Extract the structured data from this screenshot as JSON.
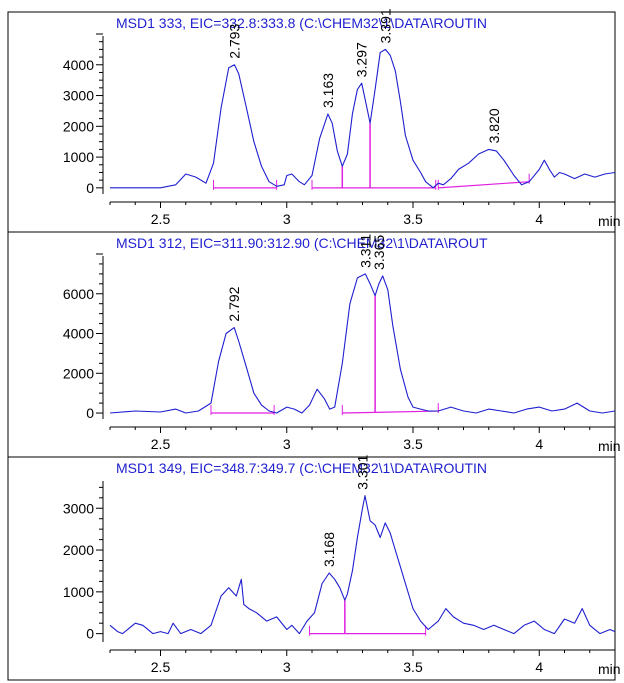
{
  "chart_data": [
    {
      "type": "line",
      "title": "MSD1 333, EIC=332.8:333.8 (C:\\CHEM32\\1\\DATA\\ROUTIN",
      "xlabel": "min",
      "ylabel": "",
      "xlim": [
        2.3,
        4.3
      ],
      "ylim": [
        -200,
        5000
      ],
      "x_ticks": [
        2.5,
        3,
        3.5,
        4
      ],
      "x_tick_labels": [
        "2.5",
        "3",
        "3.5",
        "4"
      ],
      "y_ticks": [
        0,
        1000,
        2000,
        3000,
        4000
      ],
      "y_tick_labels": [
        "0",
        "1000",
        "2000",
        "3000",
        "4000"
      ],
      "series": [
        {
          "x": [
            2.3,
            2.5,
            2.56,
            2.6,
            2.64,
            2.68,
            2.71,
            2.74,
            2.77,
            2.793,
            2.81,
            2.84,
            2.87,
            2.9,
            2.93,
            2.96,
            2.99,
            3.0,
            3.02,
            3.05,
            3.07,
            3.1,
            3.13,
            3.163,
            3.18,
            3.2,
            3.22,
            3.24,
            3.26,
            3.28,
            3.297,
            3.31,
            3.33,
            3.35,
            3.37,
            3.391,
            3.41,
            3.43,
            3.45,
            3.47,
            3.5,
            3.53,
            3.55,
            3.58,
            3.6,
            3.62,
            3.65,
            3.68,
            3.72,
            3.76,
            3.8,
            3.83,
            3.86,
            3.9,
            3.93,
            3.96,
            4.0,
            4.02,
            4.04,
            4.06,
            4.08,
            4.1,
            4.14,
            4.18,
            4.22,
            4.26,
            4.3
          ],
          "y": [
            0,
            0,
            100,
            450,
            350,
            150,
            800,
            2600,
            3900,
            4000,
            3700,
            2600,
            1500,
            700,
            200,
            50,
            100,
            400,
            450,
            200,
            100,
            400,
            1600,
            2400,
            2100,
            1200,
            700,
            1100,
            2400,
            3200,
            3400,
            2900,
            2100,
            3200,
            4400,
            4500,
            4300,
            3800,
            2800,
            1700,
            900,
            500,
            200,
            0,
            150,
            100,
            300,
            600,
            800,
            1100,
            1250,
            1200,
            900,
            400,
            100,
            200,
            600,
            900,
            600,
            350,
            500,
            450,
            300,
            450,
            350,
            450,
            500
          ]
        }
      ],
      "peak_labels": [
        {
          "x": 2.793,
          "y": 4000,
          "text": "2.793"
        },
        {
          "x": 3.163,
          "y": 2400,
          "text": "3.163"
        },
        {
          "x": 3.297,
          "y": 3400,
          "text": "3.297"
        },
        {
          "x": 3.391,
          "y": 4500,
          "text": "3.391"
        },
        {
          "x": 3.82,
          "y": 1250,
          "text": "3.820"
        }
      ],
      "baselines": [
        {
          "x1": 2.71,
          "y1": 0,
          "x2": 2.96,
          "y2": 0
        },
        {
          "x1": 3.1,
          "y1": 0,
          "x2": 3.59,
          "y2": 0
        },
        {
          "x1": 3.6,
          "y1": 0,
          "x2": 3.96,
          "y2": 200
        }
      ],
      "dropdowns": [
        {
          "x": 3.22,
          "y": 700
        },
        {
          "x": 3.33,
          "y": 2100
        }
      ]
    },
    {
      "type": "line",
      "title": "MSD1 312, EIC=311.90:312.90 (C:\\CHEM32\\1\\DATA\\ROUT",
      "xlabel": "min",
      "ylabel": "",
      "xlim": [
        2.3,
        4.3
      ],
      "ylim": [
        -300,
        8000
      ],
      "x_ticks": [
        2.5,
        3,
        3.5,
        4
      ],
      "x_tick_labels": [
        "2.5",
        "3",
        "3.5",
        "4"
      ],
      "y_ticks": [
        0,
        2000,
        4000,
        6000
      ],
      "y_tick_labels": [
        "0",
        "2000",
        "4000",
        "6000"
      ],
      "series": [
        {
          "x": [
            2.3,
            2.4,
            2.5,
            2.56,
            2.6,
            2.65,
            2.7,
            2.73,
            2.76,
            2.792,
            2.81,
            2.84,
            2.87,
            2.9,
            2.93,
            2.96,
            3.0,
            3.03,
            3.06,
            3.09,
            3.12,
            3.15,
            3.17,
            3.19,
            3.22,
            3.25,
            3.28,
            3.311,
            3.33,
            3.35,
            3.365,
            3.38,
            3.4,
            3.42,
            3.45,
            3.48,
            3.5,
            3.53,
            3.56,
            3.6,
            3.65,
            3.7,
            3.75,
            3.8,
            3.85,
            3.9,
            3.95,
            4.0,
            4.05,
            4.1,
            4.15,
            4.2,
            4.25,
            4.3
          ],
          "y": [
            0,
            100,
            50,
            200,
            0,
            100,
            500,
            2600,
            4000,
            4300,
            3600,
            2300,
            1000,
            400,
            100,
            0,
            300,
            200,
            0,
            400,
            1200,
            700,
            200,
            300,
            2500,
            5500,
            6800,
            7000,
            6500,
            5900,
            6500,
            6900,
            6200,
            4400,
            2200,
            800,
            300,
            200,
            100,
            100,
            300,
            100,
            0,
            200,
            100,
            0,
            200,
            300,
            100,
            200,
            500,
            100,
            0,
            100
          ]
        }
      ],
      "peak_labels": [
        {
          "x": 2.792,
          "y": 4300,
          "text": "2.792"
        },
        {
          "x": 3.311,
          "y": 7000,
          "text": "3.311"
        },
        {
          "x": 3.365,
          "y": 6900,
          "text": "3.365"
        }
      ],
      "baselines": [
        {
          "x1": 2.7,
          "y1": 0,
          "x2": 2.95,
          "y2": 0
        },
        {
          "x1": 3.22,
          "y1": 0,
          "x2": 3.6,
          "y2": 100
        }
      ],
      "dropdowns": [
        {
          "x": 3.35,
          "y": 5900
        }
      ]
    },
    {
      "type": "line",
      "title": "MSD1 349, EIC=348.7:349.7 (C:\\CHEM32\\1\\DATA\\ROUTIN",
      "xlabel": "min",
      "ylabel": "",
      "xlim": [
        2.3,
        4.3
      ],
      "ylim": [
        -200,
        3700
      ],
      "x_ticks": [
        2.5,
        3,
        3.5,
        4
      ],
      "x_tick_labels": [
        "2.5",
        "3",
        "3.5",
        "4"
      ],
      "y_ticks": [
        0,
        1000,
        2000,
        3000
      ],
      "y_tick_labels": [
        "0",
        "1000",
        "2000",
        "3000"
      ],
      "series": [
        {
          "x": [
            2.3,
            2.33,
            2.35,
            2.4,
            2.43,
            2.47,
            2.5,
            2.53,
            2.55,
            2.58,
            2.62,
            2.66,
            2.7,
            2.74,
            2.77,
            2.8,
            2.82,
            2.83,
            2.85,
            2.88,
            2.92,
            2.96,
            3.0,
            3.02,
            3.05,
            3.08,
            3.11,
            3.14,
            3.168,
            3.19,
            3.21,
            3.23,
            3.24,
            3.26,
            3.28,
            3.3,
            3.31,
            3.33,
            3.35,
            3.37,
            3.39,
            3.41,
            3.43,
            3.45,
            3.47,
            3.5,
            3.53,
            3.56,
            3.6,
            3.63,
            3.66,
            3.7,
            3.74,
            3.78,
            3.82,
            3.86,
            3.9,
            3.94,
            3.98,
            4.02,
            4.06,
            4.1,
            4.14,
            4.17,
            4.2,
            4.24,
            4.28,
            4.3
          ],
          "y": [
            200,
            50,
            0,
            250,
            200,
            0,
            50,
            0,
            250,
            0,
            100,
            0,
            200,
            900,
            1100,
            900,
            1300,
            700,
            600,
            500,
            300,
            400,
            100,
            200,
            0,
            300,
            500,
            1200,
            1450,
            1300,
            1100,
            800,
            950,
            1500,
            2300,
            3000,
            3300,
            2700,
            2600,
            2300,
            2650,
            2400,
            2000,
            1600,
            1200,
            600,
            300,
            100,
            300,
            600,
            400,
            250,
            200,
            100,
            200,
            100,
            0,
            200,
            300,
            100,
            0,
            350,
            250,
            600,
            200,
            0,
            100,
            50
          ]
        }
      ],
      "peak_labels": [
        {
          "x": 3.168,
          "y": 1450,
          "text": "3.168"
        },
        {
          "x": 3.301,
          "y": 3300,
          "text": "3.301"
        }
      ],
      "baselines": [
        {
          "x1": 3.09,
          "y1": 0,
          "x2": 3.55,
          "y2": 0
        }
      ],
      "dropdowns": [
        {
          "x": 3.23,
          "y": 800
        }
      ]
    }
  ],
  "colors": {
    "trace": "#1f1fd0",
    "integration": "#e020e0",
    "axis": "#000000",
    "title": "#1f1fd0",
    "background": "#ffffff",
    "frame": "#000000"
  }
}
